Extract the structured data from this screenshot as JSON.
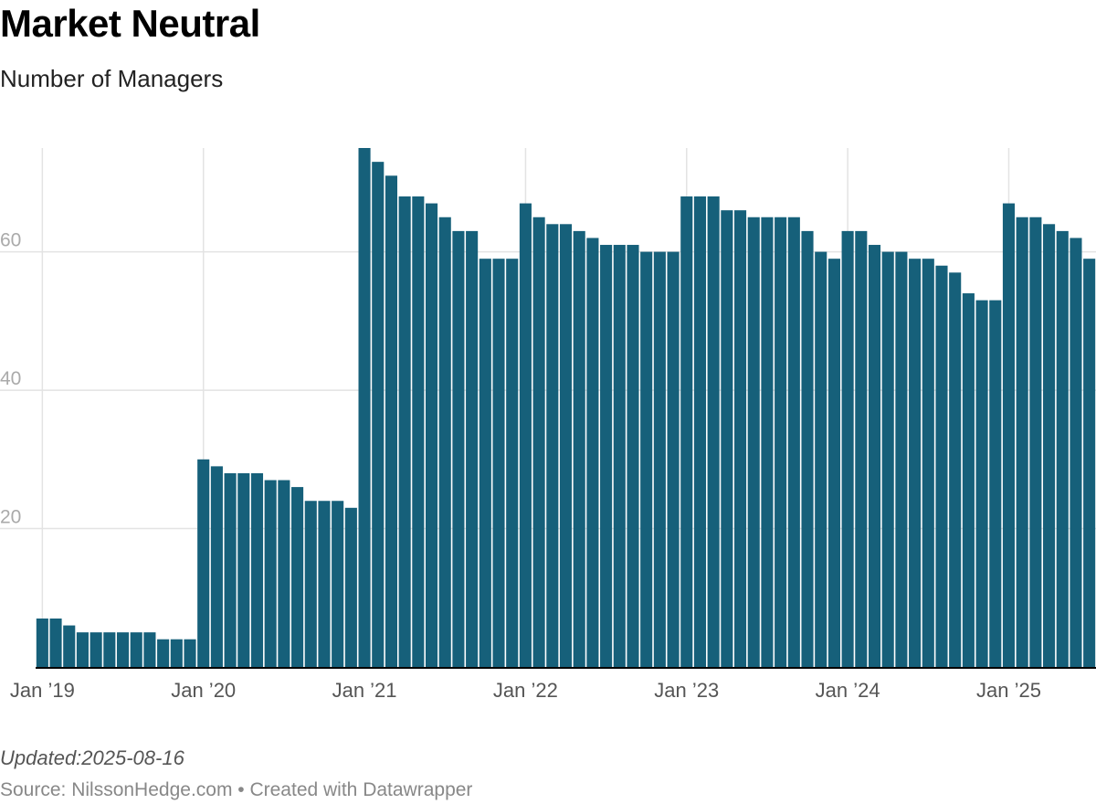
{
  "header": {
    "title": "Market Neutral",
    "subtitle": "Number of Managers"
  },
  "footer": {
    "updated": "Updated:2025-08-16",
    "source": "Source: NilssonHedge.com • Created with Datawrapper"
  },
  "colors": {
    "bar": "#16607a",
    "grid": "#e3e3e3",
    "axis": "#000000",
    "tick_label": "#aaaaaa",
    "x_label": "#555555"
  },
  "chart_data": {
    "type": "bar",
    "title": "Market Neutral",
    "subtitle": "Number of Managers",
    "xlabel": "",
    "ylabel": "",
    "ylim": [
      0,
      75
    ],
    "grid": true,
    "y_ticks": [
      20,
      40,
      60
    ],
    "x_ticks": [
      "Jan ’19",
      "Jan ’20",
      "Jan ’21",
      "Jan ’22",
      "Jan ’23",
      "Jan ’24",
      "Jan ’25"
    ],
    "x_tick_index": [
      0,
      12,
      24,
      36,
      48,
      60,
      72
    ],
    "categories": [
      "2019-01",
      "2019-02",
      "2019-03",
      "2019-04",
      "2019-05",
      "2019-06",
      "2019-07",
      "2019-08",
      "2019-09",
      "2019-10",
      "2019-11",
      "2019-12",
      "2020-01",
      "2020-02",
      "2020-03",
      "2020-04",
      "2020-05",
      "2020-06",
      "2020-07",
      "2020-08",
      "2020-09",
      "2020-10",
      "2020-11",
      "2020-12",
      "2021-01",
      "2021-02",
      "2021-03",
      "2021-04",
      "2021-05",
      "2021-06",
      "2021-07",
      "2021-08",
      "2021-09",
      "2021-10",
      "2021-11",
      "2021-12",
      "2022-01",
      "2022-02",
      "2022-03",
      "2022-04",
      "2022-05",
      "2022-06",
      "2022-07",
      "2022-08",
      "2022-09",
      "2022-10",
      "2022-11",
      "2022-12",
      "2023-01",
      "2023-02",
      "2023-03",
      "2023-04",
      "2023-05",
      "2023-06",
      "2023-07",
      "2023-08",
      "2023-09",
      "2023-10",
      "2023-11",
      "2023-12",
      "2024-01",
      "2024-02",
      "2024-03",
      "2024-04",
      "2024-05",
      "2024-06",
      "2024-07",
      "2024-08",
      "2024-09",
      "2024-10",
      "2024-11",
      "2024-12",
      "2025-01",
      "2025-02",
      "2025-03",
      "2025-04",
      "2025-05",
      "2025-06",
      "2025-07"
    ],
    "values": [
      7,
      7,
      6,
      5,
      5,
      5,
      5,
      5,
      5,
      4,
      4,
      4,
      30,
      29,
      28,
      28,
      28,
      27,
      27,
      26,
      24,
      24,
      24,
      23,
      75,
      73,
      71,
      68,
      68,
      67,
      65,
      63,
      63,
      59,
      59,
      59,
      67,
      65,
      64,
      64,
      63,
      62,
      61,
      61,
      61,
      60,
      60,
      60,
      68,
      68,
      68,
      66,
      66,
      65,
      65,
      65,
      65,
      63,
      60,
      59,
      63,
      63,
      61,
      60,
      60,
      59,
      59,
      58,
      57,
      54,
      53,
      53,
      67,
      65,
      65,
      64,
      63,
      62,
      59
    ]
  }
}
